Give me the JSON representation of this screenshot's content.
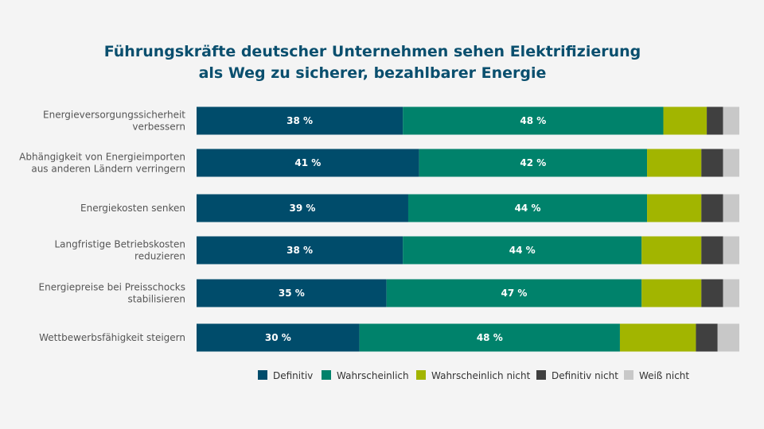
{
  "colors": {
    "background": "#f4f4f4",
    "title": "#0a4f6e",
    "series": [
      "#004c6b",
      "#00826b",
      "#a2b500",
      "#404040",
      "#c8c8c8"
    ]
  },
  "chart_data": {
    "type": "bar",
    "orientation": "horizontal",
    "stacked": true,
    "title": [
      "Führungskräfte deutscher Unternehmen sehen Elektrifizierung",
      "als Weg zu sicherer, bezahlbarer Energie"
    ],
    "categories": [
      [
        "Energieversorgungssicherheit",
        "verbessern"
      ],
      [
        "Abhängigkeit von Energieimporten",
        "aus anderen Ländern verringern"
      ],
      [
        "Energiekosten senken"
      ],
      [
        "Langfristige Betriebskosten",
        "reduzieren"
      ],
      [
        "Energiepreise bei Preisschocks",
        "stabilisieren"
      ],
      [
        "Wettbewerbsfähigkeit steigern"
      ]
    ],
    "series": [
      {
        "name": "Definitiv",
        "values": [
          38,
          41,
          39,
          38,
          35,
          30
        ],
        "labels": [
          "38 %",
          "41 %",
          "39 %",
          "38 %",
          "35 %",
          "30 %"
        ]
      },
      {
        "name": "Wahrscheinlich",
        "values": [
          48,
          42,
          44,
          44,
          47,
          48
        ],
        "labels": [
          "48 %",
          "42 %",
          "44 %",
          "44 %",
          "47 %",
          "48 %"
        ]
      },
      {
        "name": "Wahrscheinlich nicht",
        "values": [
          8,
          10,
          10,
          11,
          11,
          14
        ]
      },
      {
        "name": "Definitiv nicht",
        "values": [
          3,
          4,
          4,
          4,
          4,
          4
        ]
      },
      {
        "name": "Weiß nicht",
        "values": [
          3,
          3,
          3,
          3,
          3,
          4
        ]
      }
    ],
    "xlim": [
      0,
      100
    ],
    "legend_position": "bottom",
    "grid": false
  }
}
